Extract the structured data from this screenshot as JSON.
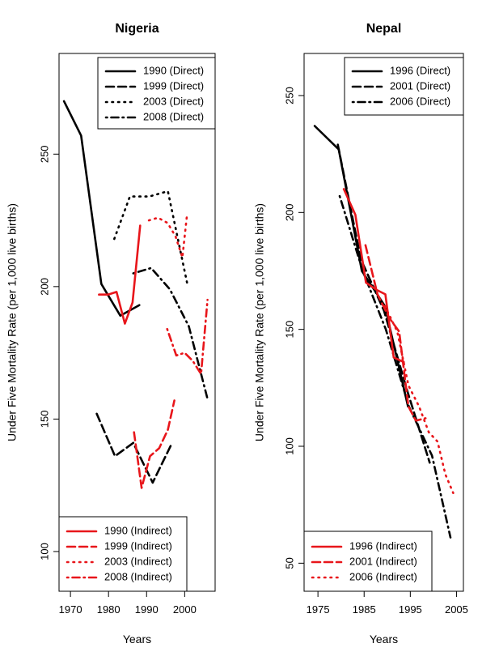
{
  "chart_data": [
    {
      "type": "line",
      "title": "Nigeria",
      "xlabel": "Years",
      "ylabel": "Under Five Mortality Rate (per 1,000 live births)",
      "xlim": [
        1967,
        2008
      ],
      "ylim": [
        85,
        288
      ],
      "xticks": [
        1970,
        1980,
        1990,
        2000
      ],
      "yticks": [
        100,
        150,
        200,
        250
      ],
      "grid": false,
      "legends": [
        {
          "position": "top-right",
          "entries": [
            "1990 (Direct)",
            "1999 (Direct)",
            "2003 (Direct)",
            "2008 (Direct)"
          ]
        },
        {
          "position": "bottom-left",
          "entries": [
            "1990 (Indirect)",
            "1999 (Indirect)",
            "2003 (Indirect)",
            "2008 (Indirect)"
          ]
        }
      ],
      "series": [
        {
          "name": "1990 (Direct)",
          "color": "#000000",
          "dash": "solid",
          "x": [
            1968.3,
            1972.8,
            1978.1,
            1983.1,
            1988.1
          ],
          "y": [
            270,
            257,
            201,
            189,
            193
          ]
        },
        {
          "name": "1999 (Direct)",
          "color": "#000000",
          "dash": "dashed",
          "x": [
            1976.9,
            1981.7,
            1986.5,
            1991.6,
            1996.7
          ],
          "y": [
            152,
            136,
            141,
            126,
            141
          ]
        },
        {
          "name": "2003 (Direct)",
          "color": "#000000",
          "dotted": true,
          "dash": "dotted",
          "x": [
            1981.5,
            1985.6,
            1990.7,
            1995.6,
            2000.7
          ],
          "y": [
            218,
            234,
            234,
            236,
            201
          ]
        },
        {
          "name": "2008 (Direct)",
          "color": "#000000",
          "dash": "dotdash",
          "x": [
            1986.5,
            1991.2,
            1996.1,
            2001.1,
            2006.1
          ],
          "y": [
            205,
            207,
            199,
            185,
            157
          ]
        },
        {
          "name": "1990 (Indirect)",
          "color": "#e8161b",
          "dash": "solid",
          "x": [
            1977.5,
            1979.9,
            1982.1,
            1984.3,
            1986.3,
            1988.3
          ],
          "y": [
            197,
            197,
            198,
            186,
            194,
            223
          ]
        },
        {
          "name": "1999 (Indirect)",
          "color": "#e8161b",
          "dash": "dashed",
          "x": [
            1986.7,
            1988.7,
            1990.9,
            1993.3,
            1995.6,
            1997.3
          ],
          "y": [
            145,
            124,
            136,
            139,
            146,
            157
          ]
        },
        {
          "name": "2003 (Indirect)",
          "color": "#e8161b",
          "dash": "dotted",
          "x": [
            1990.6,
            1993.0,
            1995.5,
            1997.6,
            1999.4,
            2000.6
          ],
          "y": [
            225,
            226,
            224,
            219,
            211,
            227
          ]
        },
        {
          "name": "2008 (Indirect)",
          "color": "#e8161b",
          "dash": "dotdash",
          "x": [
            1995.4,
            1997.8,
            2000.0,
            2002.1,
            2004.3,
            2006.0
          ],
          "y": [
            184,
            174,
            175,
            172,
            167,
            195
          ]
        }
      ]
    },
    {
      "type": "line",
      "title": "Nepal",
      "xlabel": "Years",
      "ylabel": "Under Five Mortality Rate (per 1,000 live births)",
      "xlim": [
        1972,
        2006.5
      ],
      "ylim": [
        38,
        268
      ],
      "xticks": [
        1975,
        1985,
        1995,
        2005
      ],
      "yticks": [
        50,
        100,
        150,
        200,
        250
      ],
      "grid": false,
      "legends": [
        {
          "position": "top-right",
          "entries": [
            "1996 (Direct)",
            "2001 (Direct)",
            "2006 (Direct)"
          ]
        },
        {
          "position": "bottom-left",
          "entries": [
            "1996 (Indirect)",
            "2001 (Indirect)",
            "2006 (Indirect)"
          ]
        }
      ],
      "series": [
        {
          "name": "1996 (Direct)",
          "color": "#000000",
          "dash": "solid",
          "x": [
            1974.3,
            1979.5,
            1984.5,
            1989.5,
            1994.5
          ],
          "y": [
            237,
            227,
            175,
            160,
            117
          ]
        },
        {
          "name": "2001 (Direct)",
          "color": "#000000",
          "dash": "dashed",
          "x": [
            1979.3,
            1984.3,
            1989.3,
            1994.3,
            1999.2
          ],
          "y": [
            229,
            180,
            158,
            124,
            93
          ]
        },
        {
          "name": "2006 (Direct)",
          "color": "#000000",
          "dash": "dotdash",
          "x": [
            1979.7,
            1984.7,
            1989.7,
            1994.7,
            1999.7,
            2003.7
          ],
          "y": [
            207,
            175,
            150,
            117,
            96,
            61
          ]
        },
        {
          "name": "1996 (Indirect)",
          "color": "#e8161b",
          "dash": "solid",
          "x": [
            1980.6,
            1983.1,
            1985.4,
            1987.6,
            1989.6,
            1991.4,
            1993.6
          ],
          "y": [
            210,
            199,
            170,
            167,
            165,
            138,
            136
          ]
        },
        {
          "name": "2001 (Indirect)",
          "color": "#e8161b",
          "dash": "dashed",
          "x": [
            1985.3,
            1987.9,
            1990.4,
            1992.6,
            1994.6,
            1996.2,
            1998.3
          ],
          "y": [
            186,
            165,
            155,
            149,
            117,
            111,
            112
          ]
        },
        {
          "name": "2006 (Indirect)",
          "color": "#e8161b",
          "dash": "dotted",
          "x": [
            1989.5,
            1992.2,
            1994.6,
            1996.9,
            1999.0,
            2000.9,
            2002.6,
            2004.3
          ],
          "y": [
            160,
            149,
            126,
            117,
            106,
            102,
            88,
            80
          ]
        }
      ]
    }
  ]
}
